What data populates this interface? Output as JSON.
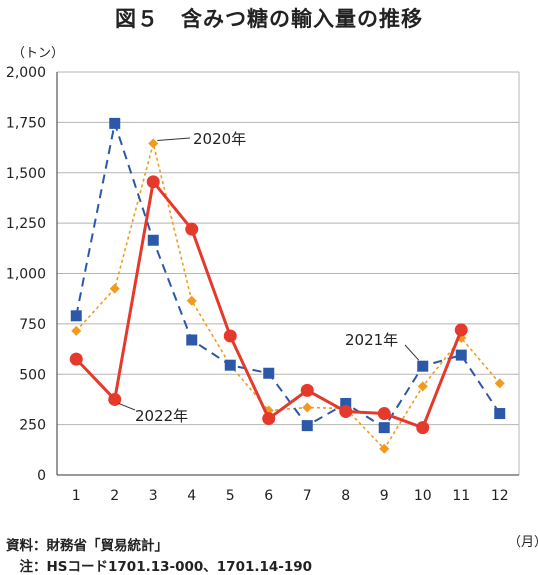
{
  "title": "図５　含みつ糖の輸入量の推移",
  "y_unit": "（トン）",
  "x_unit": "（月）",
  "footer": {
    "source": "資料：財務省「貿易統計」",
    "note": "　注：HSコード1701.13-000、1701.14-190"
  },
  "colors": {
    "series_2020": "#f29a1d",
    "series_2021": "#2b58a8",
    "series_2022": "#e5392b",
    "grid": "#b5b5b5"
  },
  "chart_data": {
    "type": "line",
    "title": "図５　含みつ糖の輸入量の推移",
    "xlabel": "（月）",
    "ylabel": "（トン）",
    "x": [
      1,
      2,
      3,
      4,
      5,
      6,
      7,
      8,
      9,
      10,
      11,
      12
    ],
    "ylim": [
      0,
      2000
    ],
    "yticks": [
      0,
      250,
      500,
      750,
      1000,
      1250,
      1500,
      1750,
      2000
    ],
    "ytick_labels": [
      "0",
      "250",
      "500",
      "750",
      "1,000",
      "1,250",
      "1,500",
      "1,750",
      "2,000"
    ],
    "xtick_labels": [
      "1",
      "2",
      "3",
      "4",
      "5",
      "6",
      "7",
      "8",
      "9",
      "10",
      "11",
      "12"
    ],
    "grid": true,
    "series": [
      {
        "name": "2020年",
        "marker": "diamond",
        "line": "dotted",
        "values": [
          715,
          925,
          1645,
          865,
          545,
          320,
          335,
          330,
          130,
          440,
          680,
          455
        ]
      },
      {
        "name": "2021年",
        "marker": "square",
        "line": "dashed",
        "values": [
          790,
          1745,
          1165,
          670,
          545,
          505,
          245,
          355,
          235,
          540,
          595,
          305
        ]
      },
      {
        "name": "2022年",
        "marker": "circle",
        "line": "solid",
        "values": [
          575,
          375,
          1455,
          1220,
          690,
          280,
          420,
          315,
          305,
          235,
          720,
          null
        ]
      }
    ],
    "annotations": [
      "2020年",
      "2021年",
      "2022年"
    ]
  }
}
